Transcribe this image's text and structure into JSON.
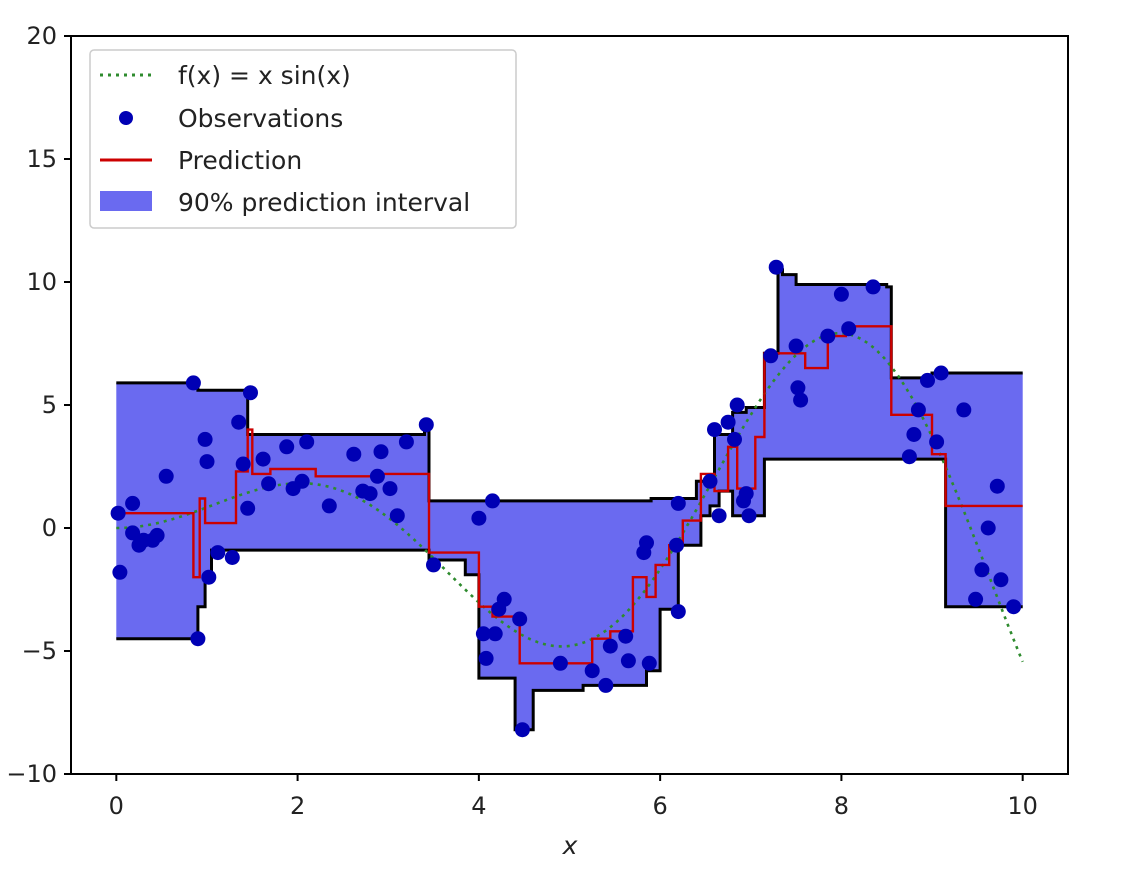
{
  "chart_data": {
    "type": "line",
    "title": "",
    "xlabel": "x",
    "ylabel": "",
    "xlim": [
      -0.5,
      10.5
    ],
    "ylim": [
      -10,
      20
    ],
    "xticks": [
      0,
      2,
      4,
      6,
      8,
      10
    ],
    "yticks": [
      -10,
      -5,
      0,
      5,
      10,
      15,
      20
    ],
    "xtick_labels": [
      "0",
      "2",
      "4",
      "6",
      "8",
      "10"
    ],
    "ytick_labels": [
      "−10",
      "−5",
      "0",
      "5",
      "10",
      "15",
      "20"
    ],
    "grid": false,
    "legend_position": "top-left",
    "legend": [
      {
        "label": "f(x) = x sin(x)",
        "style": "dotted-line",
        "color": "#2e8b2e"
      },
      {
        "label": "Observations",
        "style": "marker",
        "color": "#0000b4"
      },
      {
        "label": "Prediction",
        "style": "line",
        "color": "#cc0000"
      },
      {
        "label": "90% prediction interval",
        "style": "fill",
        "color": "#6a6af0"
      }
    ],
    "colors": {
      "function": "#2e8b2e",
      "observations": "#0000b4",
      "prediction": "#cc0000",
      "interval_fill": "#6a6af0",
      "interval_edge": "#000000"
    },
    "series": [
      {
        "name": "f(x) = x sin(x)",
        "kind": "function",
        "x_range": [
          0,
          10
        ]
      },
      {
        "name": "Observations",
        "kind": "scatter",
        "points": [
          [
            0.02,
            0.6
          ],
          [
            0.04,
            -1.8
          ],
          [
            0.18,
            1.0
          ],
          [
            0.18,
            -0.2
          ],
          [
            0.25,
            -0.7
          ],
          [
            0.3,
            -0.5
          ],
          [
            0.4,
            -0.5
          ],
          [
            0.45,
            -0.3
          ],
          [
            0.55,
            2.1
          ],
          [
            0.85,
            5.9
          ],
          [
            0.9,
            -4.5
          ],
          [
            0.98,
            3.6
          ],
          [
            1.0,
            2.7
          ],
          [
            1.02,
            -2.0
          ],
          [
            1.12,
            -1.0
          ],
          [
            1.28,
            -1.2
          ],
          [
            1.35,
            4.3
          ],
          [
            1.4,
            2.6
          ],
          [
            1.45,
            0.8
          ],
          [
            1.48,
            5.5
          ],
          [
            1.62,
            2.8
          ],
          [
            1.68,
            1.8
          ],
          [
            1.88,
            3.3
          ],
          [
            1.95,
            1.6
          ],
          [
            2.05,
            1.9
          ],
          [
            2.1,
            3.5
          ],
          [
            2.35,
            0.9
          ],
          [
            2.62,
            3.0
          ],
          [
            2.72,
            1.5
          ],
          [
            2.8,
            1.4
          ],
          [
            2.88,
            2.1
          ],
          [
            2.92,
            3.1
          ],
          [
            3.02,
            1.6
          ],
          [
            3.1,
            0.5
          ],
          [
            3.2,
            3.5
          ],
          [
            3.42,
            4.2
          ],
          [
            3.5,
            -1.5
          ],
          [
            4.0,
            0.4
          ],
          [
            4.05,
            -4.3
          ],
          [
            4.08,
            -5.3
          ],
          [
            4.15,
            1.1
          ],
          [
            4.18,
            -4.3
          ],
          [
            4.22,
            -3.3
          ],
          [
            4.28,
            -2.9
          ],
          [
            4.45,
            -3.7
          ],
          [
            4.48,
            -8.2
          ],
          [
            4.9,
            -5.5
          ],
          [
            5.25,
            -5.8
          ],
          [
            5.4,
            -6.4
          ],
          [
            5.45,
            -4.8
          ],
          [
            5.62,
            -4.4
          ],
          [
            5.65,
            -5.4
          ],
          [
            5.82,
            -1.0
          ],
          [
            5.85,
            -0.6
          ],
          [
            5.88,
            -5.5
          ],
          [
            6.18,
            -0.7
          ],
          [
            6.2,
            -3.4
          ],
          [
            6.2,
            1.0
          ],
          [
            6.55,
            1.9
          ],
          [
            6.6,
            4.0
          ],
          [
            6.65,
            0.5
          ],
          [
            6.75,
            4.3
          ],
          [
            6.82,
            3.6
          ],
          [
            6.85,
            5.0
          ],
          [
            6.92,
            1.1
          ],
          [
            6.95,
            1.4
          ],
          [
            6.98,
            0.5
          ],
          [
            7.22,
            7.0
          ],
          [
            7.28,
            10.6
          ],
          [
            7.5,
            7.4
          ],
          [
            7.52,
            5.7
          ],
          [
            7.55,
            5.2
          ],
          [
            7.85,
            7.8
          ],
          [
            8.0,
            9.5
          ],
          [
            8.08,
            8.1
          ],
          [
            8.35,
            9.8
          ],
          [
            8.75,
            2.9
          ],
          [
            8.8,
            3.8
          ],
          [
            8.85,
            4.8
          ],
          [
            8.95,
            6.0
          ],
          [
            9.05,
            3.5
          ],
          [
            9.1,
            6.3
          ],
          [
            9.35,
            4.8
          ],
          [
            9.48,
            -2.9
          ],
          [
            9.55,
            -1.7
          ],
          [
            9.62,
            0.0
          ],
          [
            9.72,
            1.7
          ],
          [
            9.76,
            -2.1
          ],
          [
            9.9,
            -3.2
          ]
        ]
      },
      {
        "name": "Prediction",
        "kind": "step",
        "points": [
          [
            0.0,
            0.6
          ],
          [
            0.85,
            0.6
          ],
          [
            0.85,
            -2.0
          ],
          [
            0.92,
            -2.0
          ],
          [
            0.92,
            1.2
          ],
          [
            0.98,
            1.2
          ],
          [
            0.98,
            0.2
          ],
          [
            1.32,
            0.2
          ],
          [
            1.32,
            2.3
          ],
          [
            1.45,
            2.3
          ],
          [
            1.45,
            4.0
          ],
          [
            1.5,
            4.0
          ],
          [
            1.5,
            2.2
          ],
          [
            1.7,
            2.2
          ],
          [
            1.7,
            2.4
          ],
          [
            2.2,
            2.4
          ],
          [
            2.2,
            2.1
          ],
          [
            2.9,
            2.1
          ],
          [
            2.9,
            2.2
          ],
          [
            3.45,
            2.2
          ],
          [
            3.45,
            -1.0
          ],
          [
            3.6,
            -1.0
          ],
          [
            3.6,
            -1.0
          ],
          [
            4.0,
            -1.0
          ],
          [
            4.0,
            -3.2
          ],
          [
            4.15,
            -3.2
          ],
          [
            4.15,
            -3.6
          ],
          [
            4.45,
            -3.6
          ],
          [
            4.45,
            -5.5
          ],
          [
            5.25,
            -5.5
          ],
          [
            5.25,
            -4.5
          ],
          [
            5.45,
            -4.5
          ],
          [
            5.45,
            -4.2
          ],
          [
            5.7,
            -4.2
          ],
          [
            5.7,
            -2.0
          ],
          [
            5.85,
            -2.0
          ],
          [
            5.85,
            -2.8
          ],
          [
            5.95,
            -2.8
          ],
          [
            5.95,
            -1.5
          ],
          [
            6.1,
            -1.5
          ],
          [
            6.1,
            -0.7
          ],
          [
            6.25,
            -0.7
          ],
          [
            6.25,
            0.3
          ],
          [
            6.45,
            0.3
          ],
          [
            6.45,
            2.2
          ],
          [
            6.6,
            2.2
          ],
          [
            6.6,
            1.5
          ],
          [
            6.75,
            1.5
          ],
          [
            6.75,
            3.3
          ],
          [
            6.85,
            3.3
          ],
          [
            6.85,
            1.6
          ],
          [
            7.05,
            1.6
          ],
          [
            7.05,
            3.7
          ],
          [
            7.15,
            3.7
          ],
          [
            7.15,
            7.1
          ],
          [
            7.6,
            7.1
          ],
          [
            7.6,
            6.5
          ],
          [
            7.85,
            6.5
          ],
          [
            7.85,
            7.8
          ],
          [
            8.05,
            7.8
          ],
          [
            8.05,
            8.2
          ],
          [
            8.55,
            8.2
          ],
          [
            8.55,
            4.6
          ],
          [
            9.0,
            4.6
          ],
          [
            9.0,
            3.0
          ],
          [
            9.15,
            3.0
          ],
          [
            9.15,
            0.9
          ],
          [
            10.0,
            0.9
          ]
        ]
      },
      {
        "name": "90% prediction interval",
        "kind": "interval",
        "upper": [
          [
            0.0,
            5.9
          ],
          [
            0.9,
            5.9
          ],
          [
            0.9,
            5.6
          ],
          [
            1.45,
            5.6
          ],
          [
            1.45,
            3.8
          ],
          [
            3.4,
            3.8
          ],
          [
            3.4,
            3.95
          ],
          [
            3.45,
            3.95
          ],
          [
            3.45,
            1.1
          ],
          [
            5.9,
            1.1
          ],
          [
            5.9,
            1.2
          ],
          [
            6.4,
            1.2
          ],
          [
            6.4,
            1.9
          ],
          [
            6.6,
            1.9
          ],
          [
            6.6,
            3.8
          ],
          [
            6.8,
            3.8
          ],
          [
            6.8,
            4.7
          ],
          [
            6.95,
            4.7
          ],
          [
            6.95,
            4.9
          ],
          [
            7.15,
            4.9
          ],
          [
            7.15,
            7.1
          ],
          [
            7.3,
            7.1
          ],
          [
            7.3,
            10.5
          ],
          [
            7.35,
            10.5
          ],
          [
            7.35,
            10.3
          ],
          [
            7.5,
            10.3
          ],
          [
            7.5,
            9.9
          ],
          [
            8.5,
            9.9
          ],
          [
            8.5,
            9.8
          ],
          [
            8.55,
            9.8
          ],
          [
            8.55,
            6.1
          ],
          [
            9.0,
            6.1
          ],
          [
            9.0,
            6.3
          ],
          [
            10.0,
            6.3
          ]
        ],
        "lower": [
          [
            0.0,
            -4.5
          ],
          [
            0.9,
            -4.5
          ],
          [
            0.9,
            -3.2
          ],
          [
            0.98,
            -3.2
          ],
          [
            0.98,
            -2.0
          ],
          [
            1.05,
            -2.0
          ],
          [
            1.05,
            -0.9
          ],
          [
            3.45,
            -0.9
          ],
          [
            3.45,
            -1.3
          ],
          [
            3.85,
            -1.3
          ],
          [
            3.85,
            -1.9
          ],
          [
            4.0,
            -1.9
          ],
          [
            4.0,
            -6.1
          ],
          [
            4.4,
            -6.1
          ],
          [
            4.4,
            -8.2
          ],
          [
            4.6,
            -8.2
          ],
          [
            4.6,
            -6.6
          ],
          [
            5.15,
            -6.6
          ],
          [
            5.15,
            -6.4
          ],
          [
            5.85,
            -6.4
          ],
          [
            5.85,
            -5.8
          ],
          [
            6.0,
            -5.8
          ],
          [
            6.0,
            -3.3
          ],
          [
            6.2,
            -3.3
          ],
          [
            6.2,
            -0.7
          ],
          [
            6.45,
            -0.7
          ],
          [
            6.45,
            0.5
          ],
          [
            6.55,
            0.5
          ],
          [
            6.55,
            0.9
          ],
          [
            6.65,
            0.9
          ],
          [
            6.65,
            1.5
          ],
          [
            6.8,
            1.5
          ],
          [
            6.8,
            0.5
          ],
          [
            7.05,
            0.5
          ],
          [
            7.05,
            0.5
          ],
          [
            7.15,
            0.5
          ],
          [
            7.15,
            2.8
          ],
          [
            9.15,
            2.8
          ],
          [
            9.15,
            -3.2
          ],
          [
            10.0,
            -3.2
          ]
        ]
      }
    ]
  }
}
